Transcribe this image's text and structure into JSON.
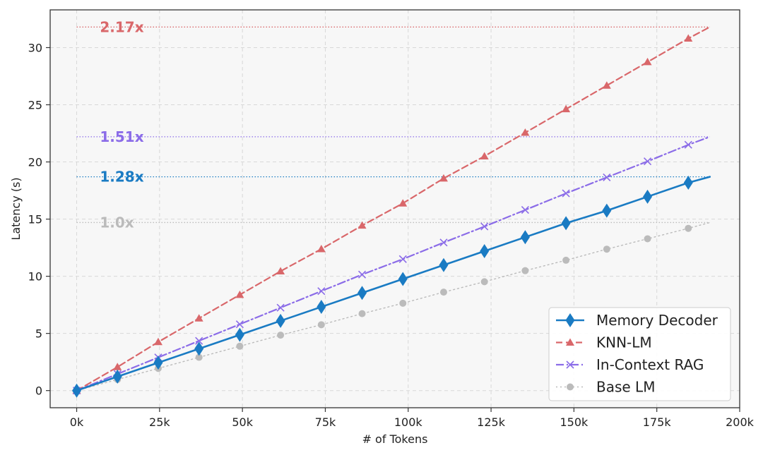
{
  "chart_data": {
    "type": "line",
    "xlabel": "# of Tokens",
    "ylabel": "Latency (s)",
    "xlim": [
      -8000,
      200000
    ],
    "ylim": [
      -1.5,
      33.3
    ],
    "xticks": [
      0,
      25000,
      50000,
      75000,
      100000,
      125000,
      150000,
      175000,
      200000
    ],
    "xtick_labels": [
      "0k",
      "25k",
      "50k",
      "75k",
      "100k",
      "125k",
      "150k",
      "175k",
      "200k"
    ],
    "yticks": [
      0,
      5,
      10,
      15,
      20,
      25,
      30
    ],
    "ytick_labels": [
      "0",
      "5",
      "10",
      "15",
      "20",
      "25",
      "30"
    ],
    "grid": true,
    "legend_position": "lower-right",
    "x": [
      0,
      12300,
      24600,
      36900,
      49200,
      61500,
      73800,
      86100,
      98400,
      110700,
      123000,
      135300,
      147600,
      159900,
      172200,
      184500
    ],
    "series": [
      {
        "name": "Memory Decoder",
        "color": "#1a7bc3",
        "linestyle": "solid",
        "marker": "diamond",
        "values": [
          0.0,
          1.22,
          2.44,
          3.66,
          4.88,
          6.1,
          7.32,
          8.54,
          9.76,
          10.98,
          12.2,
          13.42,
          14.64,
          15.74,
          16.96,
          18.18
        ],
        "end_x": 191000,
        "end_value": 18.7
      },
      {
        "name": "KNN-LM",
        "color": "#d9676a",
        "linestyle": "dashed",
        "marker": "triangle",
        "values": [
          0.0,
          2.06,
          4.25,
          6.32,
          8.38,
          10.44,
          12.38,
          14.44,
          16.38,
          18.56,
          20.5,
          22.56,
          24.62,
          26.68,
          28.74,
          30.8
        ],
        "end_x": 191000,
        "end_value": 31.8
      },
      {
        "name": "In-Context RAG",
        "color": "#8b6ce8",
        "linestyle": "dashdot",
        "marker": "x",
        "values": [
          0.0,
          1.45,
          2.9,
          4.35,
          5.8,
          7.25,
          8.7,
          10.15,
          11.5,
          12.95,
          14.35,
          15.8,
          17.25,
          18.65,
          20.05,
          21.5
        ],
        "end_x": 191000,
        "end_value": 22.2
      },
      {
        "name": "Base LM",
        "color": "#bbbbbb",
        "linestyle": "dotted",
        "marker": "circle",
        "values": [
          0.0,
          0.97,
          1.94,
          2.91,
          3.88,
          4.85,
          5.76,
          6.73,
          7.64,
          8.61,
          9.52,
          10.49,
          11.4,
          12.37,
          13.28,
          14.19
        ],
        "end_x": 191000,
        "end_value": 14.7
      }
    ],
    "annotations": [
      {
        "text": "2.17x",
        "series": "KNN-LM",
        "y": 31.8,
        "color": "#d9676a"
      },
      {
        "text": "1.51x",
        "series": "In-Context RAG",
        "y": 22.2,
        "color": "#8b6ce8"
      },
      {
        "text": "1.28x",
        "series": "Memory Decoder",
        "y": 18.7,
        "color": "#1a7bc3"
      },
      {
        "text": "1.0x",
        "series": "Base LM",
        "y": 14.7,
        "color": "#bbbbbb"
      }
    ]
  }
}
